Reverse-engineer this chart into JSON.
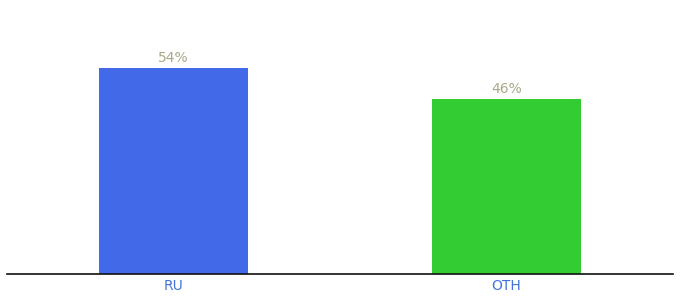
{
  "categories": [
    "RU",
    "OTH"
  ],
  "values": [
    54,
    46
  ],
  "bar_colors": [
    "#4169E8",
    "#33CC33"
  ],
  "label_texts": [
    "54%",
    "46%"
  ],
  "label_color": "#aaa888",
  "tick_color": "#4472DB",
  "background_color": "#ffffff",
  "ylim": [
    0,
    70
  ],
  "xlim": [
    -0.5,
    1.5
  ],
  "bar_width": 0.45,
  "label_fontsize": 10,
  "tick_fontsize": 10,
  "spine_color": "#111111",
  "figsize": [
    6.8,
    3.0
  ],
  "dpi": 100
}
